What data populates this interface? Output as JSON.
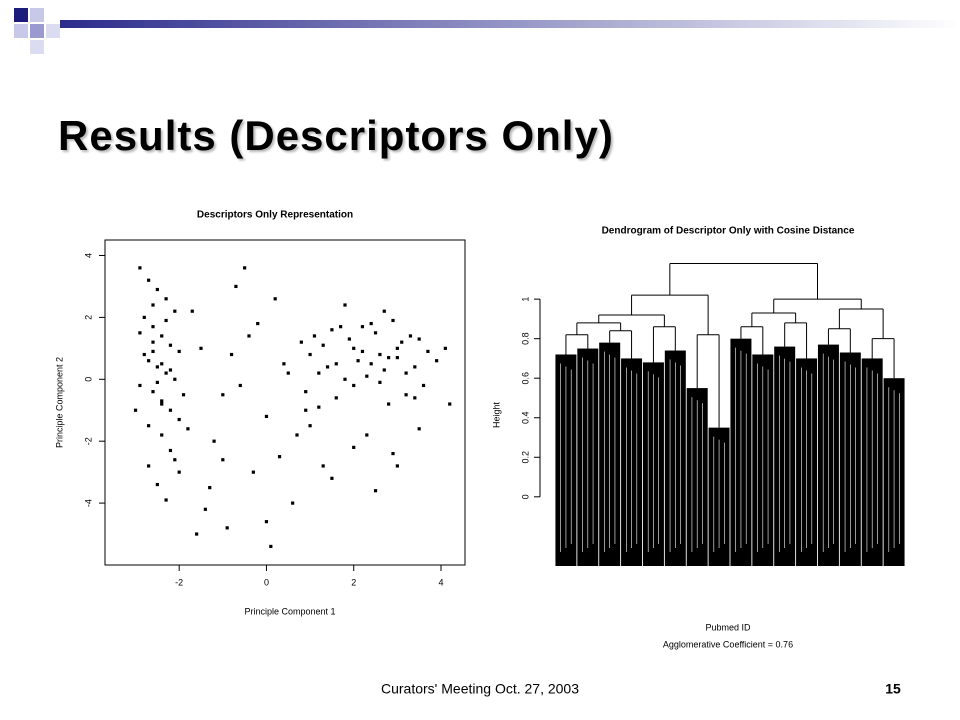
{
  "slide": {
    "title": "Results (Descriptors Only)",
    "footer": "Curators' Meeting Oct. 27, 2003",
    "page_number": "15"
  },
  "chart_data": [
    {
      "type": "scatter",
      "title": "Descriptors Only Representation",
      "x_label": "Principle Component 1",
      "y_label": "Principle Component 2",
      "color": "#000000",
      "xlim": [
        -3.7,
        4.55
      ],
      "ylim": [
        -6,
        4.5
      ],
      "xticks": [
        -2,
        0,
        2,
        4
      ],
      "yticks": [
        -4,
        -2,
        0,
        2,
        4
      ],
      "x": [
        -2.9,
        -2.7,
        -2.5,
        -2.3,
        -2.1,
        -2.8,
        -2.6,
        -2.4,
        -2.2,
        -2.0,
        -2.7,
        -2.5,
        -2.3,
        -2.1,
        -2.9,
        -2.6,
        -2.4,
        -2.2,
        -2.0,
        -1.9,
        -2.8,
        -2.6,
        -2.4,
        -2.2,
        -2.7,
        -2.5,
        -2.3,
        -2.1,
        -2.9,
        -2.4,
        -3.0,
        -2.6,
        -2.2,
        -1.8,
        -2.5,
        -2.3,
        -2.7,
        -2.0,
        -2.6,
        -2.4,
        1.0,
        1.3,
        1.6,
        1.9,
        2.2,
        2.5,
        2.8,
        3.1,
        3.4,
        3.7,
        1.2,
        1.5,
        1.8,
        2.1,
        2.4,
        2.7,
        3.0,
        3.3,
        3.6,
        3.9,
        0.9,
        1.4,
        1.7,
        2.0,
        2.3,
        2.6,
        2.9,
        3.2,
        3.5,
        4.1,
        1.1,
        1.6,
        2.0,
        2.4,
        2.8,
        3.2,
        0.8,
        2.2,
        2.6,
        3.0,
        -1.5,
        -1.0,
        -0.5,
        0.0,
        0.5,
        -1.2,
        -0.8,
        -0.3,
        0.2,
        0.7,
        -1.7,
        -0.6,
        0.3,
        1.0,
        1.5,
        2.0,
        2.5,
        3.0,
        3.5,
        4.2,
        -1.4,
        -0.9,
        -0.2,
        0.4,
        1.2,
        1.8,
        2.3,
        2.9,
        3.4,
        -1.3,
        -0.7,
        0.1,
        0.6,
        1.3,
        -0.4,
        -1.6,
        0.9,
        2.7,
        -1.0,
        0.0
      ],
      "y": [
        3.6,
        3.2,
        2.9,
        2.6,
        2.2,
        2.0,
        1.7,
        1.4,
        1.1,
        0.9,
        0.6,
        0.4,
        0.2,
        0.0,
        -0.2,
        -0.4,
        -0.7,
        -1.0,
        -1.3,
        -0.5,
        0.8,
        1.2,
        -1.8,
        -2.3,
        -2.8,
        -3.4,
        -3.9,
        -2.6,
        1.5,
        0.5,
        -1.0,
        2.4,
        0.3,
        -1.6,
        -0.1,
        1.9,
        -1.5,
        -3.0,
        0.9,
        -0.8,
        0.8,
        1.1,
        0.5,
        1.3,
        0.9,
        1.5,
        0.7,
        1.2,
        0.4,
        0.9,
        0.2,
        1.6,
        0.0,
        0.6,
        1.8,
        0.3,
        1.0,
        1.4,
        -0.2,
        0.6,
        -0.4,
        0.4,
        1.7,
        1.0,
        0.1,
        0.8,
        1.9,
        0.2,
        1.3,
        1.0,
        1.4,
        -0.6,
        -0.2,
        0.5,
        -0.8,
        -0.5,
        1.2,
        1.7,
        -0.1,
        0.7,
        1.0,
        -0.5,
        3.6,
        -1.2,
        0.2,
        -2.0,
        0.8,
        -3.0,
        2.6,
        -1.8,
        2.2,
        -0.2,
        -2.5,
        -1.5,
        -3.2,
        -2.2,
        -3.6,
        -2.8,
        -1.6,
        -0.8,
        -4.2,
        -4.8,
        1.8,
        0.5,
        -0.9,
        2.4,
        -1.8,
        -2.4,
        -0.6,
        -3.5,
        3.0,
        -5.4,
        -4.0,
        -2.8,
        1.4,
        -5.0,
        -1.0,
        2.2,
        -2.6,
        -4.6
      ]
    },
    {
      "type": "dendrogram",
      "title": "Dendrogram of Descriptor Only with Cosine Distance",
      "x_label": "Pubmed ID",
      "subtitle": "Agglomerative Coefficient =  0.76",
      "y_label": "Height",
      "color": "#000000",
      "ylim": [
        -0.35,
        1.2
      ],
      "yticks": [
        0.0,
        0.2,
        0.4,
        0.6,
        0.8,
        1.0
      ],
      "leaf_heights": [
        0.72,
        0.75,
        0.78,
        0.7,
        0.68,
        0.74,
        0.55,
        0.35,
        0.8,
        0.72,
        0.76,
        0.7,
        0.77,
        0.73,
        0.7,
        0.6
      ],
      "merge": [
        [
          -1,
          -2
        ],
        [
          -3,
          -4
        ],
        [
          1,
          2
        ],
        [
          -5,
          -6
        ],
        [
          3,
          4
        ],
        [
          -7,
          -8
        ],
        [
          5,
          6
        ],
        [
          -9,
          -10
        ],
        [
          -11,
          -12
        ],
        [
          8,
          9
        ],
        [
          -13,
          -14
        ],
        [
          -15,
          -16
        ],
        [
          11,
          12
        ],
        [
          10,
          13
        ],
        [
          7,
          14
        ]
      ],
      "heights": [
        0.82,
        0.84,
        0.88,
        0.86,
        0.92,
        0.82,
        1.02,
        0.86,
        0.88,
        0.93,
        0.85,
        0.8,
        0.95,
        1.0,
        1.18
      ]
    }
  ]
}
